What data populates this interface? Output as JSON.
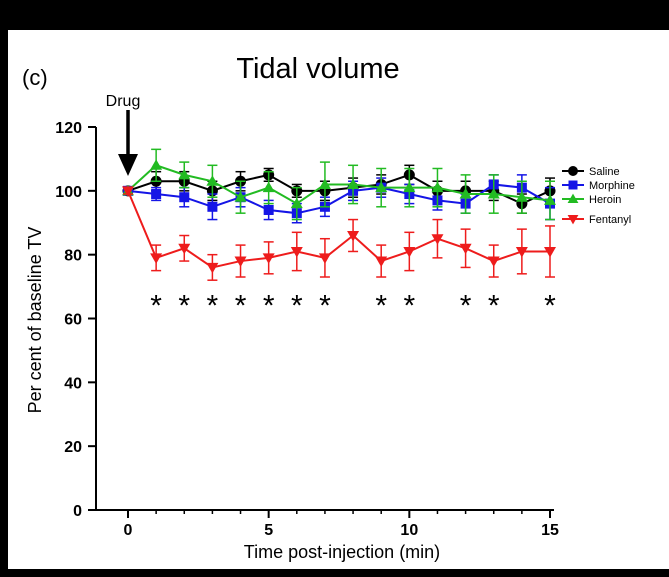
{
  "chart_data": {
    "type": "line",
    "panel_label": "(c)",
    "title": "Tidal volume",
    "annotation": "Drug",
    "xlabel": "Time post-injection (min)",
    "ylabel": "Per cent of baseline TV",
    "xlim": [
      0,
      15
    ],
    "ylim": [
      0,
      120
    ],
    "xticks": [
      0,
      5,
      10,
      15
    ],
    "yticks": [
      0,
      20,
      40,
      60,
      80,
      100,
      120
    ],
    "legend_position": "right",
    "significance_marker": "*",
    "significant_x": [
      1,
      2,
      3,
      4,
      5,
      6,
      7,
      9,
      10,
      12,
      13,
      15
    ],
    "x": [
      0,
      1,
      2,
      3,
      4,
      5,
      6,
      7,
      8,
      9,
      10,
      11,
      12,
      13,
      14,
      15
    ],
    "series": [
      {
        "name": "Saline",
        "color": "#000000",
        "marker": "circle",
        "values": [
          100,
          103,
          103,
          100,
          103,
          105,
          100,
          100,
          101,
          102,
          105,
          100,
          100,
          100,
          96,
          100
        ],
        "errors": [
          1,
          3,
          3,
          3,
          3,
          2,
          2,
          3,
          3,
          3,
          3,
          3,
          3,
          3,
          3,
          4
        ]
      },
      {
        "name": "Morphine",
        "color": "#1515e6",
        "marker": "square",
        "values": [
          100,
          99,
          98,
          95,
          98,
          94,
          93,
          95,
          100,
          101,
          99,
          97,
          96,
          102,
          101,
          96
        ],
        "errors": [
          1,
          2,
          3,
          4,
          3,
          3,
          3,
          3,
          3,
          3,
          3,
          3,
          3,
          3,
          4,
          5
        ]
      },
      {
        "name": "Heroin",
        "color": "#22bb22",
        "marker": "triangle-up",
        "values": [
          100,
          108,
          105,
          103,
          98,
          101,
          96,
          102,
          102,
          101,
          101,
          101,
          99,
          99,
          98,
          97
        ],
        "errors": [
          1,
          5,
          4,
          5,
          5,
          5,
          5,
          7,
          6,
          6,
          6,
          6,
          6,
          6,
          5,
          6
        ]
      },
      {
        "name": "Fentanyl",
        "color": "#ee1c1c",
        "marker": "triangle-down",
        "values": [
          100,
          79,
          82,
          76,
          78,
          79,
          81,
          79,
          86,
          78,
          81,
          85,
          82,
          78,
          81,
          81
        ],
        "errors": [
          1,
          4,
          4,
          4,
          5,
          5,
          6,
          6,
          5,
          5,
          6,
          6,
          6,
          5,
          7,
          8
        ]
      }
    ]
  }
}
